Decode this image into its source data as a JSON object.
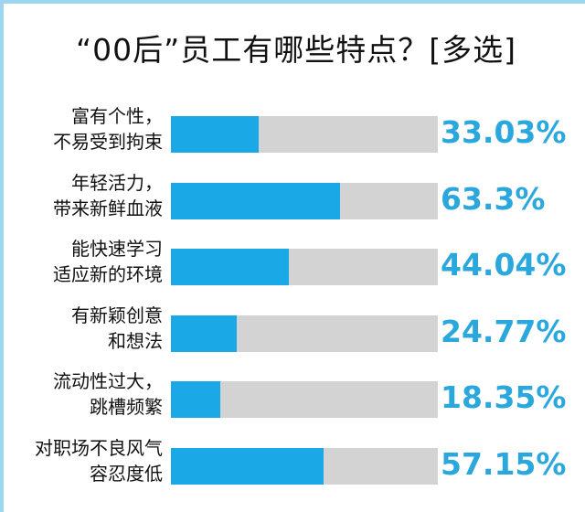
{
  "title": "“00后”员工有哪些特点？[多选]",
  "colors": {
    "bar": "#1aa9e6",
    "track": "#d3d3d3",
    "percent": "#2aa7dd",
    "frame": "#9fd6ef"
  },
  "chart_data": {
    "type": "bar",
    "orientation": "horizontal",
    "title": "“00后”员工有哪些特点？[多选]",
    "ylim": [
      0,
      100
    ],
    "categories": [
      [
        "富有个性，",
        "不易受到拘束"
      ],
      [
        "年轻活力，",
        "带来新鲜血液"
      ],
      [
        "能快速学习",
        "适应新的环境"
      ],
      [
        "有新颖创意",
        "和想法"
      ],
      [
        "流动性过大，",
        "跳槽频繁"
      ],
      [
        "对职场不良风气",
        "容忍度低"
      ]
    ],
    "values": [
      33.03,
      63.3,
      44.04,
      24.77,
      18.35,
      57.15
    ],
    "value_labels": [
      "33.03%",
      "63.3%",
      "44.04%",
      "24.77%",
      "18.35%",
      "57.15%"
    ]
  }
}
